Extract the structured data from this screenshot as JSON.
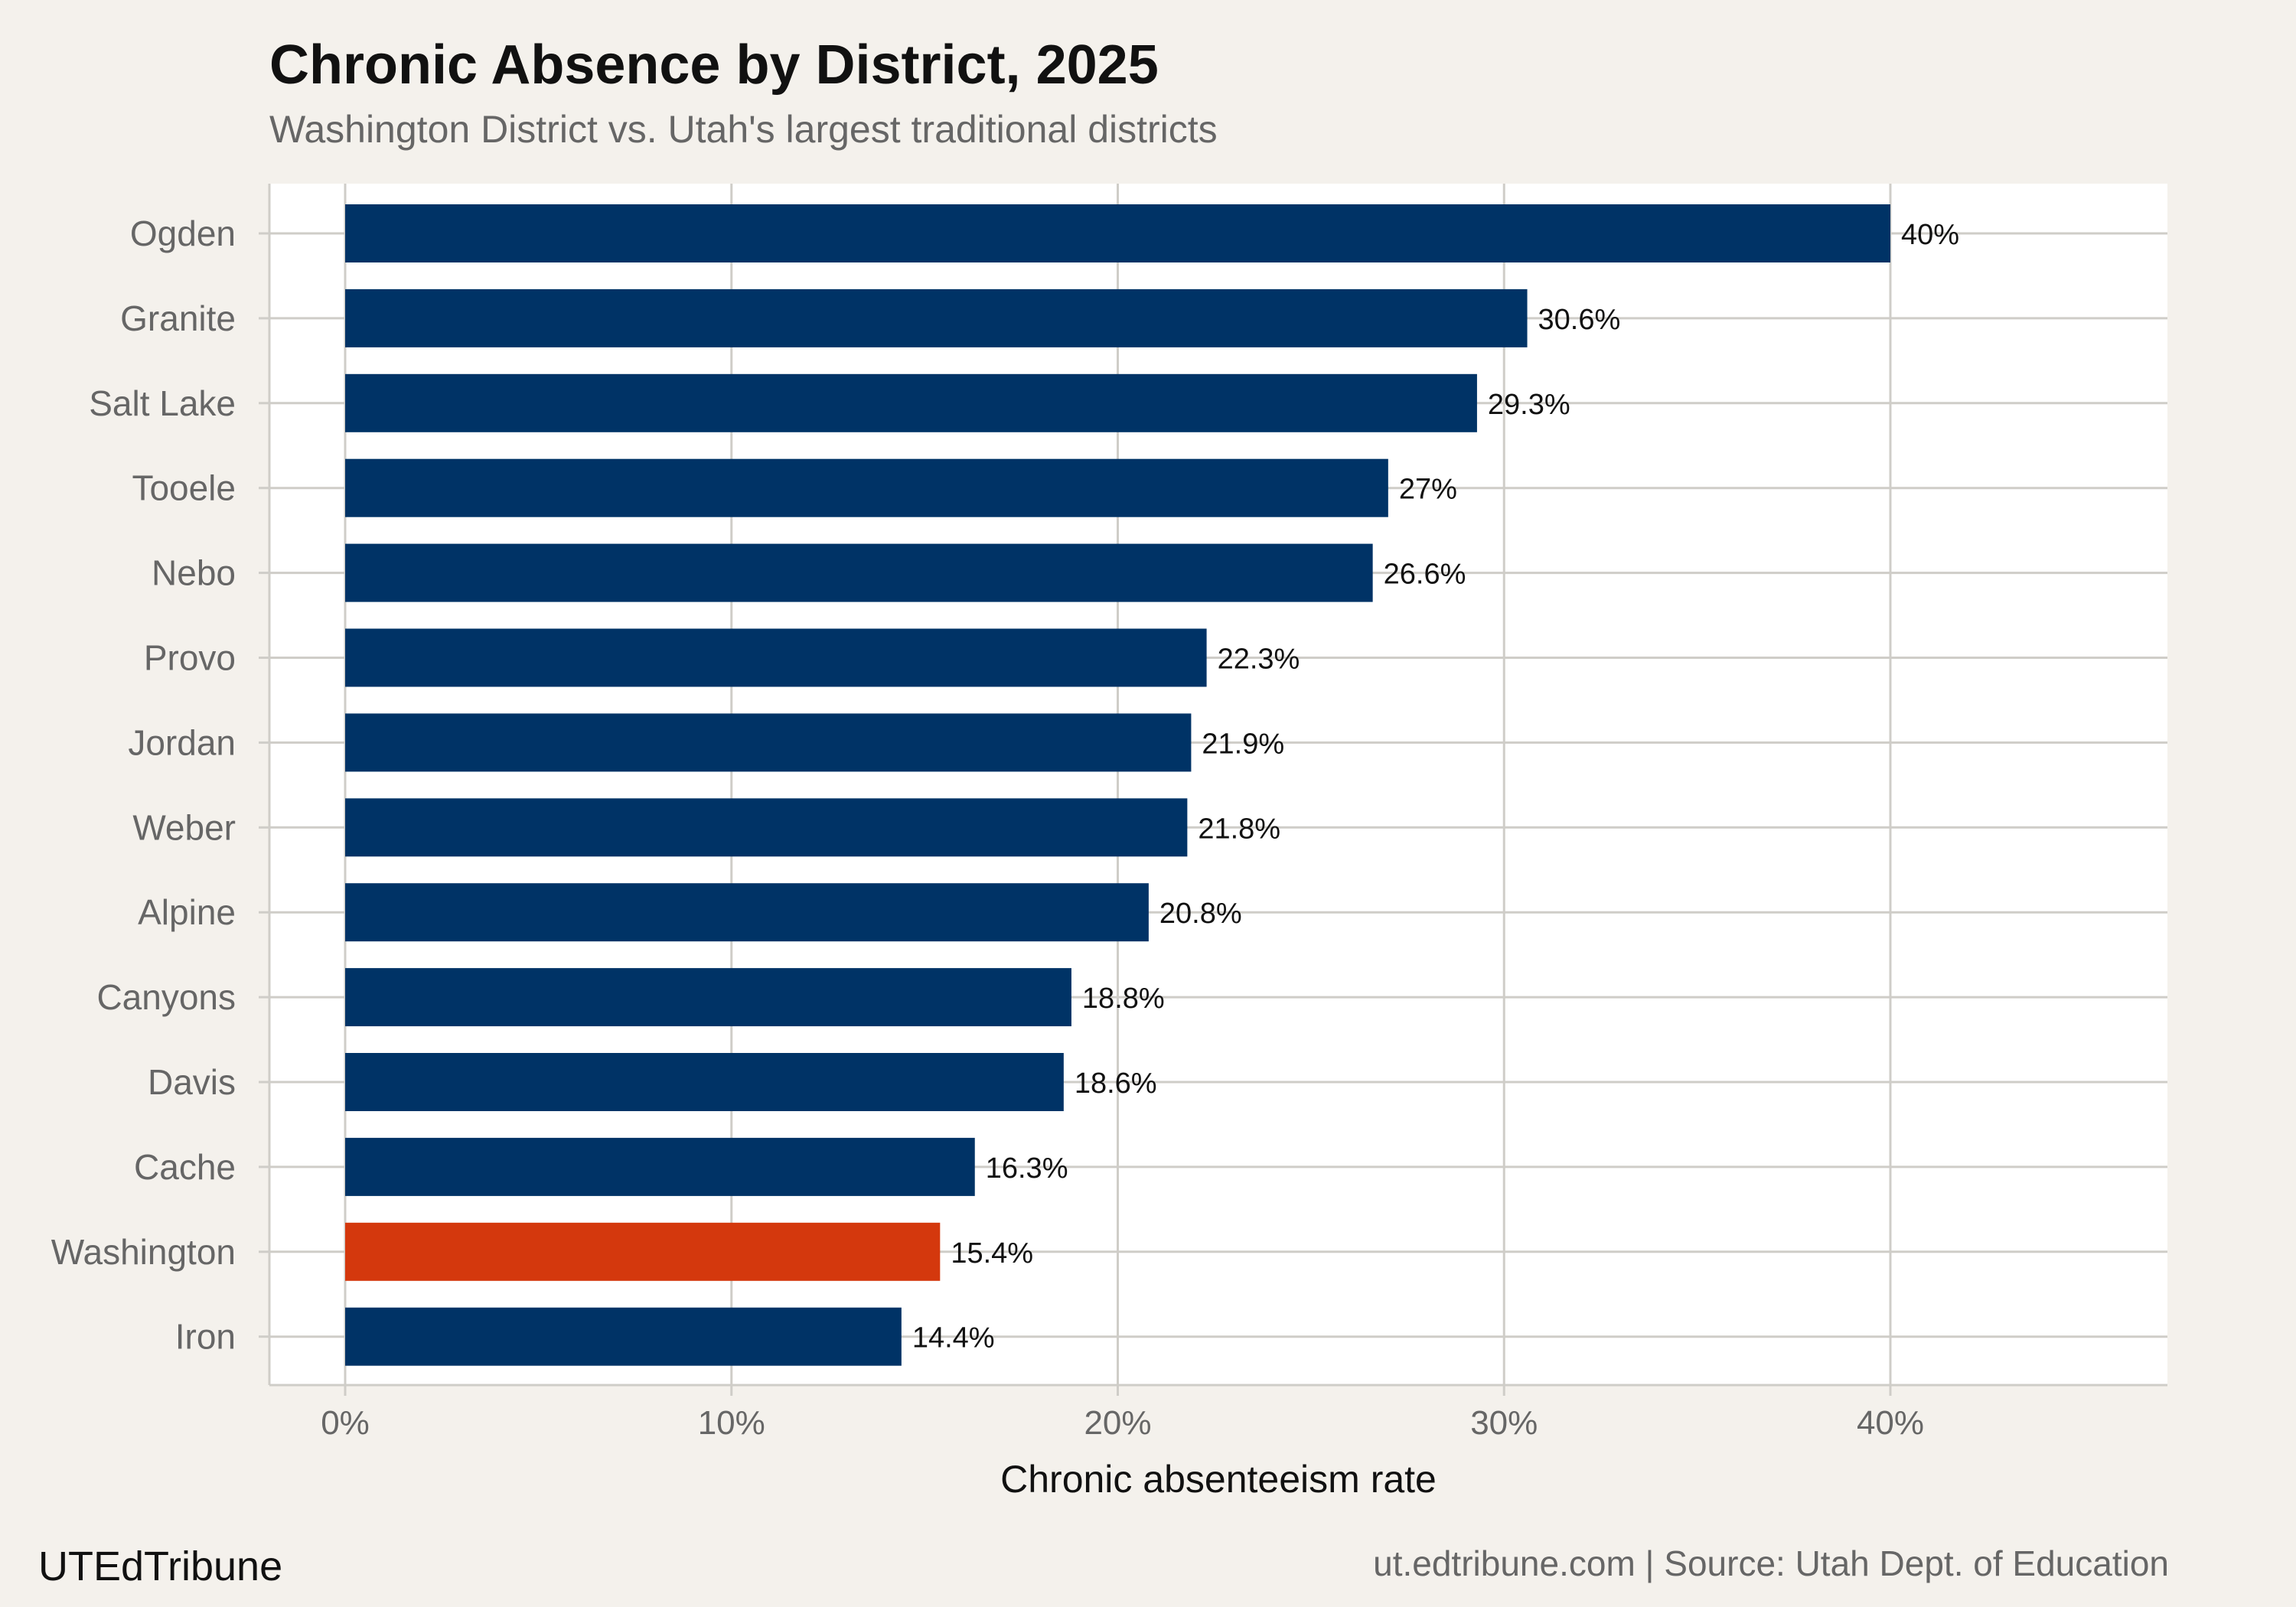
{
  "header": {
    "title": "Chronic Absence by District, 2025",
    "subtitle": "Washington District vs. Utah's largest traditional districts"
  },
  "footer": {
    "brand": "UTEdTribune",
    "source": "ut.edtribune.com | Source: Utah Dept. of Education"
  },
  "colors": {
    "background": "#f4f1ec",
    "panel": "#ffffff",
    "bar_default": "#003366",
    "bar_highlight": "#d4380d",
    "grid": "#cfcdc8"
  },
  "chart_data": {
    "type": "bar",
    "orientation": "horizontal",
    "title": "Chronic Absence by District, 2025",
    "subtitle": "Washington District vs. Utah's largest traditional districts",
    "xlabel": "Chronic absenteeism rate",
    "ylabel": "",
    "xlim": [
      -2,
      47
    ],
    "x_ticks": [
      0,
      10,
      20,
      30,
      40
    ],
    "x_tick_labels": [
      "0%",
      "10%",
      "20%",
      "30%",
      "40%"
    ],
    "grid": true,
    "categories": [
      "Ogden",
      "Granite",
      "Salt Lake",
      "Tooele",
      "Nebo",
      "Provo",
      "Jordan",
      "Weber",
      "Alpine",
      "Canyons",
      "Davis",
      "Cache",
      "Washington",
      "Iron"
    ],
    "values": [
      40,
      30.6,
      29.3,
      27,
      26.6,
      22.3,
      21.9,
      21.8,
      20.8,
      18.8,
      18.6,
      16.3,
      15.4,
      14.4
    ],
    "value_labels": [
      "40%",
      "30.6%",
      "29.3%",
      "27%",
      "26.6%",
      "22.3%",
      "21.9%",
      "21.8%",
      "20.8%",
      "18.8%",
      "18.6%",
      "16.3%",
      "15.4%",
      "14.4%"
    ],
    "highlight": "Washington"
  }
}
